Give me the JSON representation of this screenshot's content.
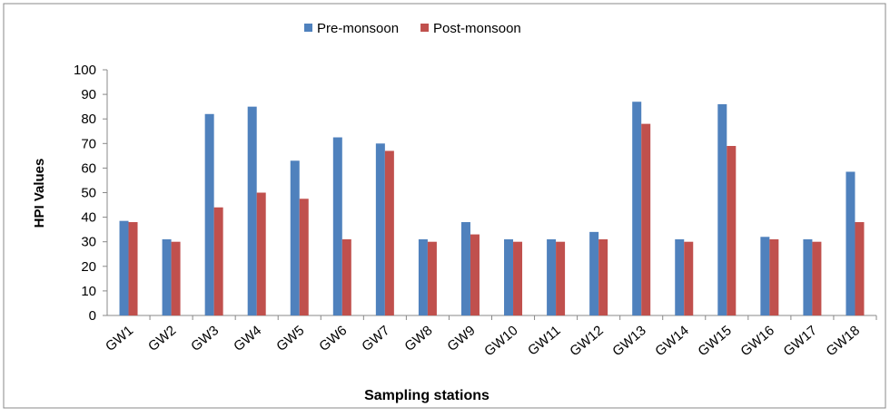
{
  "chart_data": {
    "type": "bar",
    "categories": [
      "GW1",
      "GW2",
      "GW3",
      "GW4",
      "GW5",
      "GW6",
      "GW7",
      "GW8",
      "GW9",
      "GW10",
      "GW11",
      "GW12",
      "GW13",
      "GW14",
      "GW15",
      "GW16",
      "GW17",
      "GW18"
    ],
    "series": [
      {
        "name": "Pre-monsoon",
        "color": "#4f81bd",
        "values": [
          38.5,
          31,
          82,
          85,
          63,
          72.5,
          70,
          31,
          38,
          31,
          31,
          34,
          87,
          31,
          86,
          32,
          31,
          58.5
        ]
      },
      {
        "name": "Post-monsoon",
        "color": "#c0504d",
        "values": [
          38,
          30,
          44,
          50,
          47.5,
          31,
          67,
          30,
          33,
          30,
          30,
          31,
          78,
          30,
          69,
          31,
          30,
          38
        ]
      }
    ],
    "ylim": [
      0,
      100
    ],
    "yticks": [
      0,
      10,
      20,
      30,
      40,
      50,
      60,
      70,
      80,
      90,
      100
    ],
    "y_label": "HPI Values",
    "x_label": "Sampling stations",
    "grid": false,
    "legend": "top"
  }
}
